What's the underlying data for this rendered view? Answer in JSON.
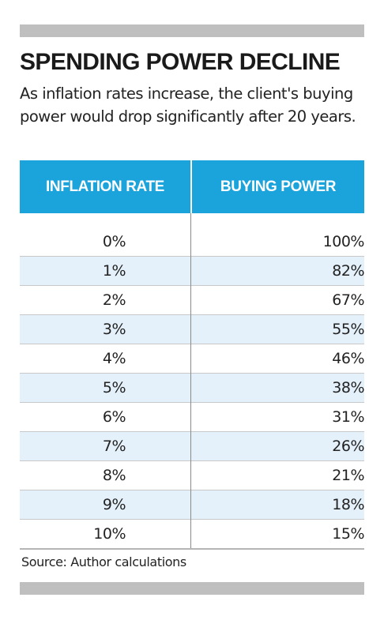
{
  "colors": {
    "bar": "#bfbfbf",
    "header": "#1ba3dc",
    "stripe": "#e5f1fa",
    "white": "#ffffff"
  },
  "title": "SPENDING POWER DECLINE",
  "subtitle": "As inflation rates increase, the client's buying power would drop significantly after 20 years.",
  "source": "Source: Author calculations",
  "chart_data": {
    "type": "table",
    "columns": [
      "INFLATION RATE",
      "BUYING POWER"
    ],
    "rows": [
      [
        "0%",
        "100%"
      ],
      [
        "1%",
        "82%"
      ],
      [
        "2%",
        "67%"
      ],
      [
        "3%",
        "55%"
      ],
      [
        "4%",
        "46%"
      ],
      [
        "5%",
        "38%"
      ],
      [
        "6%",
        "31%"
      ],
      [
        "7%",
        "26%"
      ],
      [
        "8%",
        "21%"
      ],
      [
        "9%",
        "18%"
      ],
      [
        "10%",
        "15%"
      ]
    ]
  }
}
